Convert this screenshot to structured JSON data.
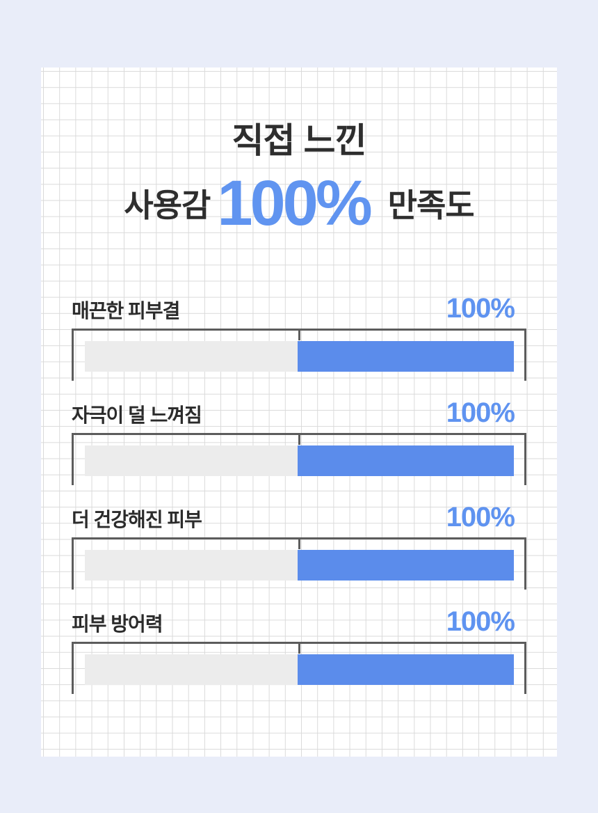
{
  "title": {
    "line1": "직접 느낀",
    "line2_prefix": "사용감",
    "line2_highlight": "100%",
    "line2_suffix": "만족도"
  },
  "rows": [
    {
      "label": "매끈한 피부결",
      "value": "100%"
    },
    {
      "label": "자극이 덜 느껴짐",
      "value": "100%"
    },
    {
      "label": "더 건강해진 피부",
      "value": "100%"
    },
    {
      "label": "피부 방어력",
      "value": "100%"
    }
  ],
  "colors": {
    "page_background": "#e9edf9",
    "card_background": "#ffffff",
    "grid_line": "#dadada",
    "accent_blue_text": "#5f93f0",
    "bar_blue": "#5b8ceb",
    "bar_gray": "#ececec",
    "frame_gray": "#5c5c5c",
    "text_dark": "#2e2e2e"
  },
  "chart_data": {
    "type": "bar",
    "orientation": "horizontal",
    "title": "직접 느낀 사용감 100% 만족도",
    "categories": [
      "매끈한 피부결",
      "자극이 덜 느껴짐",
      "더 건강해진 피부",
      "피부 방어력"
    ],
    "values": [
      100,
      100,
      100,
      100
    ],
    "value_suffix": "%",
    "xlim": [
      0,
      100
    ],
    "legend": false,
    "grid": true,
    "layout_hints": {
      "value_labels_position": "top-right of each bar",
      "bar_visual_fill_fraction": 0.5,
      "track_color_left_half": "gray",
      "fill_color_right_half": "blue",
      "frame": "top rule with left/right drop lines and 50% center tick"
    }
  }
}
